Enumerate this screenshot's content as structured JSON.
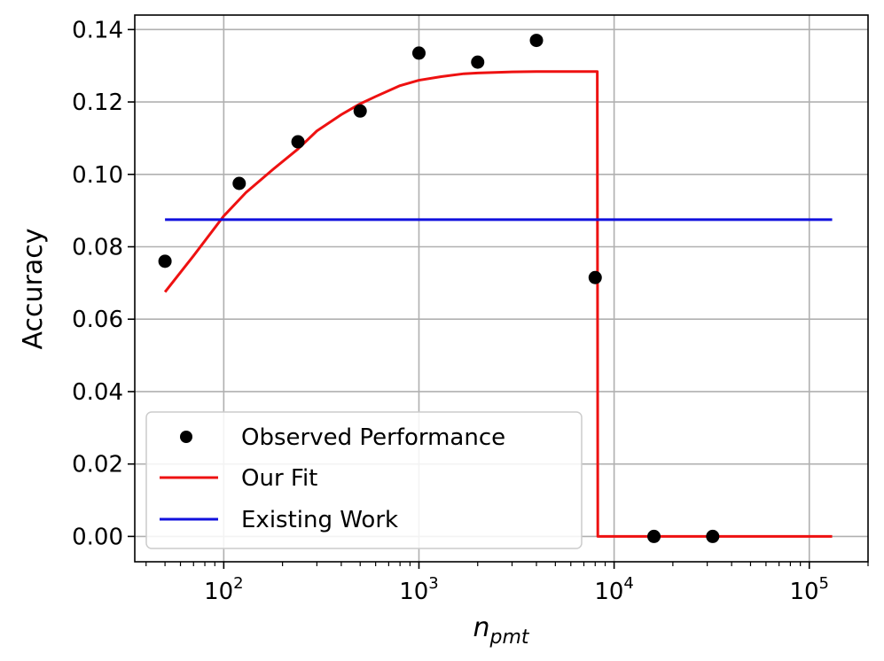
{
  "chart_data": {
    "type": "line",
    "xscale": "log",
    "x_axis": {
      "label_base": "n",
      "label_sub": "pmt",
      "xlim": [
        35,
        200000
      ],
      "major_ticks": [
        100,
        1000,
        10000,
        100000
      ],
      "tick_labels": [
        {
          "base": "10",
          "exp": "2"
        },
        {
          "base": "10",
          "exp": "3"
        },
        {
          "base": "10",
          "exp": "4"
        },
        {
          "base": "10",
          "exp": "5"
        }
      ]
    },
    "y_axis": {
      "label": "Accuracy",
      "ylim": [
        -0.007,
        0.144
      ],
      "ticks": [
        0.0,
        0.02,
        0.04,
        0.06,
        0.08,
        0.1,
        0.12,
        0.14
      ],
      "tick_labels": [
        "0.00",
        "0.02",
        "0.04",
        "0.06",
        "0.08",
        "0.10",
        "0.12",
        "0.14"
      ]
    },
    "grid": true,
    "legend_position": "lower-left",
    "series": [
      {
        "name": "Observed Performance",
        "kind": "scatter",
        "color": "#000000",
        "x": [
          50,
          120,
          240,
          500,
          1000,
          2000,
          4000,
          8000,
          16000,
          32000
        ],
        "y": [
          0.076,
          0.0975,
          0.109,
          0.1175,
          0.1335,
          0.131,
          0.137,
          0.0715,
          0.0,
          0.0
        ]
      },
      {
        "name": "Our Fit",
        "kind": "line",
        "color": "#ee1111",
        "x": [
          50,
          70,
          100,
          130,
          180,
          240,
          300,
          400,
          500,
          600,
          800,
          1000,
          1300,
          1700,
          2000,
          3000,
          4000,
          6000,
          8200,
          8250,
          10000,
          20000,
          50000,
          131000
        ],
        "y": [
          0.0675,
          0.0775,
          0.0885,
          0.095,
          0.1015,
          0.107,
          0.112,
          0.1165,
          0.1195,
          0.1215,
          0.1245,
          0.126,
          0.127,
          0.1278,
          0.128,
          0.1283,
          0.1284,
          0.1284,
          0.1284,
          0.0,
          0.0,
          0.0,
          0.0,
          0.0
        ]
      },
      {
        "name": "Existing Work",
        "kind": "line",
        "color": "#1010dd",
        "x": [
          50,
          131000
        ],
        "y": [
          0.0875,
          0.0875
        ]
      }
    ]
  }
}
